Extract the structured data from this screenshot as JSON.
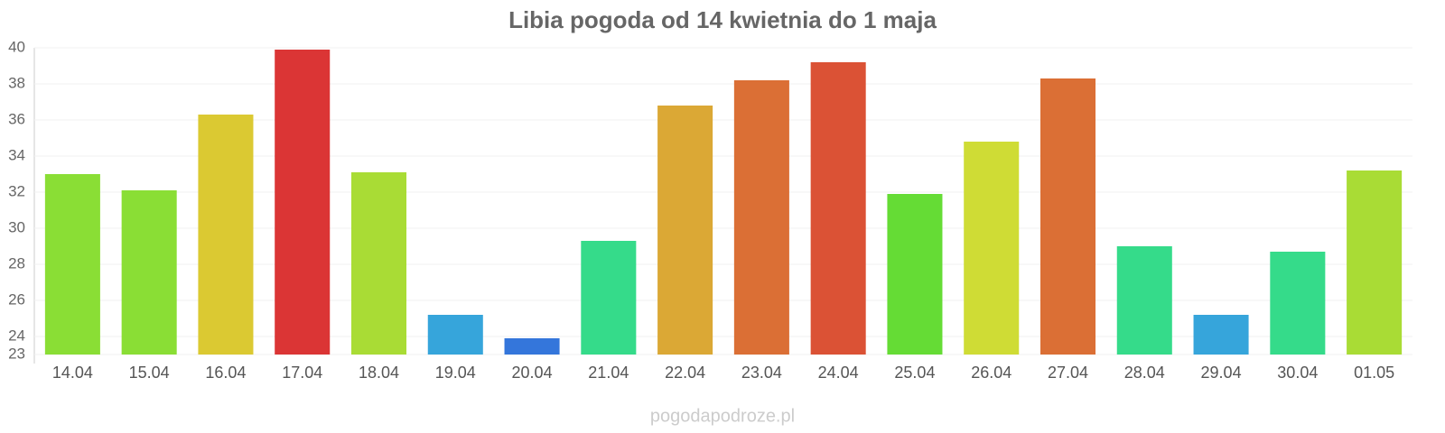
{
  "chart_data": {
    "type": "bar",
    "title": "Libia pogoda od 14 kwietnia do 1 maja",
    "source": "pogodapodroze.pl",
    "categories": [
      "14.04",
      "15.04",
      "16.04",
      "17.04",
      "18.04",
      "19.04",
      "20.04",
      "21.04",
      "22.04",
      "23.04",
      "24.04",
      "25.04",
      "26.04",
      "27.04",
      "28.04",
      "29.04",
      "30.04",
      "01.05"
    ],
    "values": [
      33.0,
      32.1,
      36.3,
      39.9,
      33.1,
      25.2,
      23.9,
      29.3,
      36.8,
      38.2,
      39.2,
      31.9,
      34.8,
      38.3,
      29.0,
      25.2,
      28.7,
      33.2
    ],
    "colors": [
      "#8ade35",
      "#8ade35",
      "#dbc932",
      "#db3535",
      "#a9dc35",
      "#36a5db",
      "#3476db",
      "#35db8a",
      "#dba835",
      "#db6f35",
      "#db5235",
      "#65dc35",
      "#cfdc35",
      "#db6f35",
      "#35db8a",
      "#36a5db",
      "#35db8a",
      "#a9dc35"
    ],
    "ylim": [
      23,
      40
    ],
    "yticks": [
      23,
      24,
      26,
      28,
      30,
      32,
      34,
      36,
      38,
      40
    ],
    "grid": true
  }
}
